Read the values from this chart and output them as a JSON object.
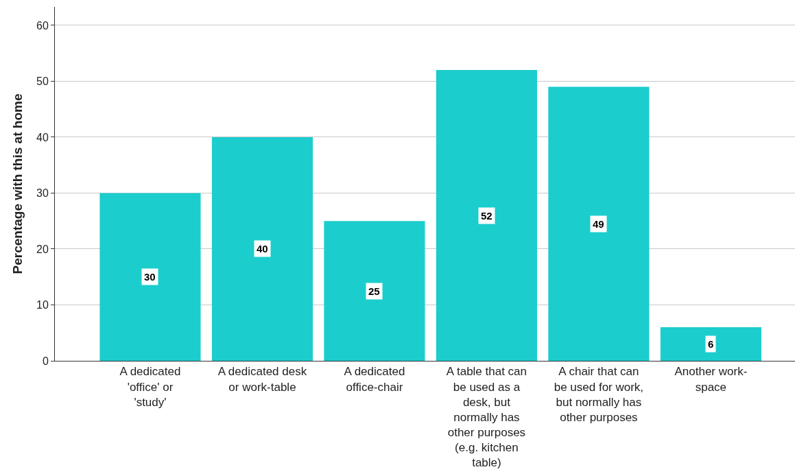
{
  "chart_data": {
    "type": "bar",
    "ylabel": "Percentage with this at home",
    "categories": [
      "A dedicated 'office' or 'study'",
      "A dedicated desk or work-table",
      "A dedicated office-chair",
      "A table that can be used as a desk, but normally has other purposes (e.g. kitchen table)",
      "A chair that can be used for work, but normally has other purposes",
      "Another work-space"
    ],
    "values": [
      30,
      40,
      25,
      52,
      49,
      6
    ],
    "color": "#1ccdcd",
    "ylim": [
      0,
      63.3
    ],
    "yticks": [
      0,
      10,
      20,
      30,
      40,
      50,
      60
    ],
    "grid": "y",
    "data_labels": true
  }
}
